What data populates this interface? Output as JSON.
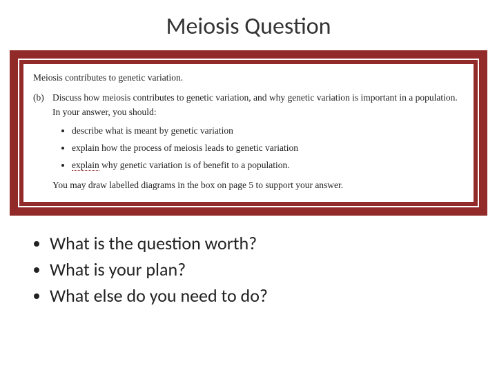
{
  "title": "Meiosis Question",
  "colors": {
    "frame_bg": "#932a2a",
    "inner_border": "#ffffff",
    "paper_bg": "#ffffff",
    "text": "#222222",
    "dotted_underline": "#9a3a3a",
    "slide_bg": "#ffffff"
  },
  "typography": {
    "title_fontsize": 34,
    "paper_font_family": "Garamond",
    "paper_fontsize": 13.5,
    "bullets_fontsize": 26
  },
  "question": {
    "stem": "Meiosis contributes to genetic variation.",
    "part_label": "(b)",
    "part_lead": "Discuss how meiosis contributes to genetic variation, and why genetic variation is important in a population. In your answer, you should:",
    "subpoints": [
      {
        "text": "describe what is meant by genetic variation",
        "dotted_word": ""
      },
      {
        "text": "explain how the process of meiosis leads to genetic variation",
        "dotted_word": ""
      },
      {
        "prefix": "",
        "dotted_word": "explain",
        "rest": " why genetic variation is of benefit to a population."
      }
    ],
    "closing": "You may draw labelled diagrams in the box on page 5 to support your answer."
  },
  "bullets": [
    "What is the question worth?",
    "What is your plan?",
    "What else do you need to do?"
  ]
}
